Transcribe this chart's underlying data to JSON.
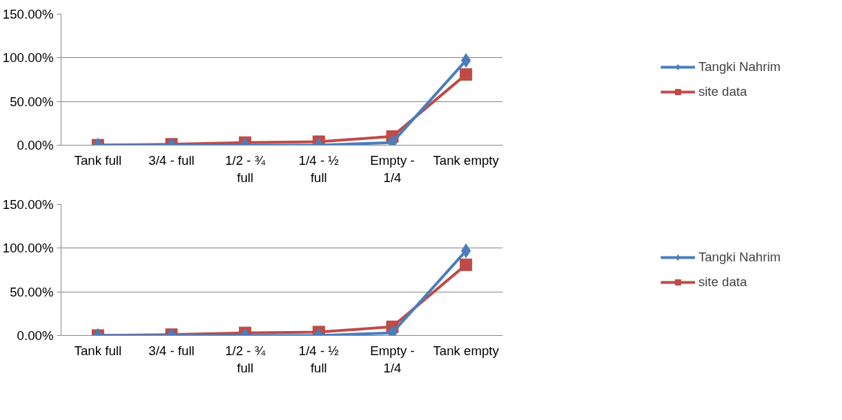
{
  "chart_data": [
    {
      "type": "line",
      "categories": [
        "Tank full",
        "3/4 - full",
        "1/2 - ¾ full",
        "1/4 - ½ full",
        "Empty - 1/4",
        "Tank empty"
      ],
      "series": [
        {
          "name": "Tangki Nahrim",
          "color": "#4a7ebb",
          "marker": "diamond",
          "values": [
            0,
            0,
            0,
            0,
            3,
            97
          ]
        },
        {
          "name": "site data",
          "color": "#be4b48",
          "marker": "square",
          "values": [
            0,
            1,
            3,
            4,
            10,
            81
          ]
        }
      ],
      "ylim": [
        0,
        150
      ],
      "yticks": [
        {
          "value": 0,
          "label": "0.00%"
        },
        {
          "value": 50,
          "label": "50.00%"
        },
        {
          "value": 100,
          "label": "100.00%"
        },
        {
          "value": 150,
          "label": "150.00%"
        }
      ],
      "grid": "y",
      "legend": "right"
    },
    {
      "type": "line",
      "categories": [
        "Tank full",
        "3/4 - full",
        "1/2 - ¾ full",
        "1/4 - ½ full",
        "Empty - 1/4",
        "Tank empty"
      ],
      "series": [
        {
          "name": "Tangki Nahrim",
          "color": "#4a7ebb",
          "marker": "diamond",
          "values": [
            0,
            0,
            0,
            0,
            3,
            97
          ]
        },
        {
          "name": "site data",
          "color": "#be4b48",
          "marker": "square",
          "values": [
            0,
            1,
            3,
            4,
            10,
            81
          ]
        }
      ],
      "ylim": [
        0,
        150
      ],
      "yticks": [
        {
          "value": 0,
          "label": "0.00%"
        },
        {
          "value": 50,
          "label": "50.00%"
        },
        {
          "value": 100,
          "label": "100.00%"
        },
        {
          "value": 150,
          "label": "150.00%"
        }
      ],
      "grid": "y",
      "legend": "right"
    }
  ]
}
